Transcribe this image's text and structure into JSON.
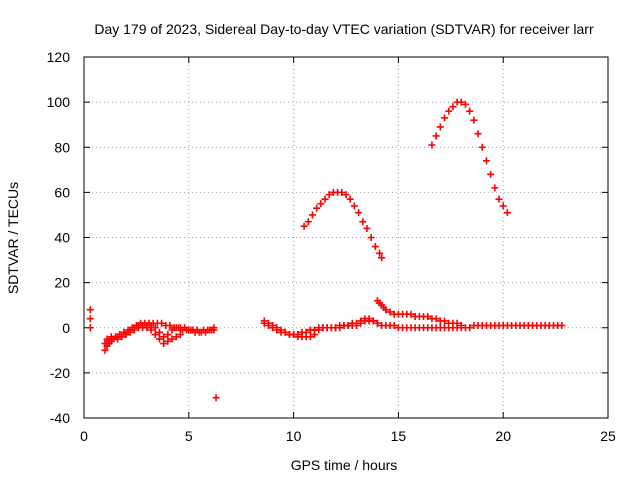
{
  "chart_data": {
    "type": "scatter",
    "title": "Day 179 of 2023, Sidereal Day-to-day VTEC variation (SDTVAR) for receiver larr",
    "xlabel": "GPS time / hours",
    "ylabel": "SDTVAR / TECUs",
    "xlim": [
      0,
      25
    ],
    "ylim": [
      -40,
      120
    ],
    "x_ticks": [
      0,
      5,
      10,
      15,
      20,
      25
    ],
    "y_ticks": [
      -40,
      -20,
      0,
      20,
      40,
      60,
      80,
      100,
      120
    ],
    "grid": true,
    "marker": "+",
    "colors": {
      "series": "#ff0000"
    },
    "series": [
      {
        "points": [
          [
            0.3,
            8
          ],
          [
            0.3,
            4
          ],
          [
            0.3,
            0
          ],
          [
            1.0,
            -10
          ],
          [
            1.1,
            -8
          ],
          [
            1.2,
            -7
          ],
          [
            1.3,
            -6
          ],
          [
            1.4,
            -5
          ],
          [
            1.6,
            -4
          ],
          [
            1.8,
            -4
          ],
          [
            2.0,
            -3
          ],
          [
            2.2,
            -1
          ],
          [
            2.4,
            0
          ],
          [
            2.6,
            1
          ],
          [
            2.8,
            1
          ],
          [
            3.0,
            1
          ],
          [
            3.2,
            1
          ],
          [
            3.4,
            0
          ],
          [
            3.6,
            -2
          ],
          [
            3.8,
            -4
          ],
          [
            4.0,
            -3
          ],
          [
            4.2,
            -1
          ],
          [
            4.4,
            0
          ],
          [
            4.6,
            0
          ],
          [
            4.8,
            0
          ],
          [
            5.0,
            -1
          ],
          [
            5.2,
            -1
          ],
          [
            5.4,
            -1
          ],
          [
            5.6,
            -2
          ],
          [
            5.8,
            -2
          ],
          [
            6.0,
            -1
          ],
          [
            6.2,
            -1
          ],
          [
            1.0,
            -7
          ],
          [
            1.2,
            -6
          ],
          [
            1.4,
            -5
          ],
          [
            1.6,
            -5
          ],
          [
            1.8,
            -4
          ],
          [
            2.0,
            -3
          ],
          [
            2.2,
            -2
          ],
          [
            2.4,
            -1
          ],
          [
            2.6,
            0
          ],
          [
            2.8,
            0
          ],
          [
            3.0,
            0
          ],
          [
            3.2,
            -1
          ],
          [
            3.4,
            -3
          ],
          [
            3.6,
            -5
          ],
          [
            3.8,
            -7
          ],
          [
            4.0,
            -6
          ],
          [
            4.2,
            -5
          ],
          [
            4.4,
            -4
          ],
          [
            4.6,
            -3
          ],
          [
            1.1,
            -5
          ],
          [
            1.3,
            -4
          ],
          [
            1.5,
            -4
          ],
          [
            1.7,
            -3
          ],
          [
            1.9,
            -2
          ],
          [
            2.1,
            -1
          ],
          [
            2.3,
            0
          ],
          [
            2.5,
            1
          ],
          [
            2.7,
            2
          ],
          [
            2.9,
            2
          ],
          [
            3.1,
            2
          ],
          [
            3.3,
            2
          ],
          [
            3.5,
            2
          ],
          [
            3.7,
            2
          ],
          [
            3.9,
            1
          ],
          [
            4.1,
            1
          ],
          [
            4.3,
            0
          ],
          [
            4.5,
            0
          ],
          [
            4.7,
            -1
          ],
          [
            4.9,
            -1
          ],
          [
            5.1,
            -1
          ],
          [
            5.3,
            -2
          ],
          [
            5.5,
            -2
          ],
          [
            5.7,
            -1
          ],
          [
            5.9,
            -1
          ],
          [
            6.1,
            -1
          ],
          [
            6.2,
            0
          ],
          [
            6.3,
            -31
          ],
          [
            8.6,
            3
          ],
          [
            8.8,
            2
          ],
          [
            9.0,
            1
          ],
          [
            9.2,
            0
          ],
          [
            9.4,
            -1
          ],
          [
            9.6,
            -2
          ],
          [
            9.8,
            -3
          ],
          [
            10.0,
            -3
          ],
          [
            10.2,
            -4
          ],
          [
            10.4,
            -4
          ],
          [
            10.6,
            -4
          ],
          [
            10.8,
            -4
          ],
          [
            11.0,
            -3
          ],
          [
            8.6,
            2
          ],
          [
            8.8,
            1
          ],
          [
            9.0,
            0
          ],
          [
            9.2,
            -1
          ],
          [
            9.4,
            -2
          ],
          [
            9.6,
            -2
          ],
          [
            9.8,
            -3
          ],
          [
            10.0,
            -3
          ],
          [
            10.2,
            -3
          ],
          [
            10.4,
            -2
          ],
          [
            10.6,
            -2
          ],
          [
            10.8,
            -1
          ],
          [
            11.0,
            -1
          ],
          [
            11.2,
            0
          ],
          [
            11.4,
            0
          ],
          [
            11.6,
            0
          ],
          [
            11.8,
            0
          ],
          [
            12.0,
            0
          ],
          [
            12.2,
            0
          ],
          [
            12.4,
            1
          ],
          [
            12.6,
            1
          ],
          [
            12.8,
            1
          ],
          [
            13.0,
            1
          ],
          [
            13.2,
            2
          ],
          [
            13.4,
            3
          ],
          [
            13.6,
            3
          ],
          [
            13.8,
            3
          ],
          [
            14.0,
            2
          ],
          [
            14.2,
            1
          ],
          [
            14.4,
            1
          ],
          [
            14.6,
            1
          ],
          [
            14.8,
            1
          ],
          [
            15.0,
            0
          ],
          [
            15.2,
            0
          ],
          [
            15.4,
            0
          ],
          [
            15.6,
            0
          ],
          [
            15.8,
            0
          ],
          [
            16.0,
            0
          ],
          [
            16.2,
            0
          ],
          [
            16.4,
            0
          ],
          [
            16.6,
            0
          ],
          [
            16.8,
            0
          ],
          [
            17.0,
            0
          ],
          [
            17.2,
            0
          ],
          [
            17.4,
            0
          ],
          [
            17.6,
            0
          ],
          [
            17.8,
            0
          ],
          [
            18.0,
            0
          ],
          [
            18.2,
            0
          ],
          [
            18.4,
            0
          ],
          [
            18.6,
            1
          ],
          [
            18.8,
            1
          ],
          [
            19.0,
            1
          ],
          [
            19.2,
            1
          ],
          [
            19.4,
            1
          ],
          [
            19.6,
            1
          ],
          [
            19.8,
            1
          ],
          [
            20.0,
            1
          ],
          [
            20.2,
            1
          ],
          [
            20.4,
            1
          ],
          [
            20.6,
            1
          ],
          [
            20.8,
            1
          ],
          [
            21.0,
            1
          ],
          [
            21.2,
            1
          ],
          [
            21.4,
            1
          ],
          [
            21.6,
            1
          ],
          [
            21.8,
            1
          ],
          [
            22.0,
            1
          ],
          [
            22.2,
            1
          ],
          [
            22.4,
            1
          ],
          [
            22.6,
            1
          ],
          [
            22.8,
            1
          ],
          [
            10.6,
            -2
          ],
          [
            10.8,
            -1
          ],
          [
            11.0,
            -1
          ],
          [
            11.2,
            -1
          ],
          [
            11.4,
            0
          ],
          [
            11.6,
            0
          ],
          [
            11.8,
            0
          ],
          [
            12.0,
            0
          ],
          [
            12.2,
            1
          ],
          [
            12.4,
            1
          ],
          [
            12.6,
            1
          ],
          [
            12.8,
            2
          ],
          [
            13.0,
            2
          ],
          [
            13.2,
            3
          ],
          [
            13.4,
            4
          ],
          [
            13.6,
            4
          ],
          [
            13.8,
            3
          ],
          [
            14.0,
            2
          ],
          [
            14.0,
            12
          ],
          [
            14.1,
            11
          ],
          [
            14.2,
            10
          ],
          [
            14.3,
            9
          ],
          [
            14.4,
            8
          ],
          [
            14.6,
            7
          ],
          [
            14.8,
            6
          ],
          [
            15.0,
            6
          ],
          [
            15.2,
            6
          ],
          [
            15.4,
            6
          ],
          [
            15.6,
            6
          ],
          [
            15.8,
            5
          ],
          [
            16.0,
            5
          ],
          [
            16.2,
            5
          ],
          [
            16.4,
            5
          ],
          [
            16.6,
            4
          ],
          [
            16.8,
            4
          ],
          [
            17.0,
            3
          ],
          [
            17.2,
            3
          ],
          [
            17.4,
            2
          ],
          [
            17.6,
            2
          ],
          [
            17.8,
            2
          ],
          [
            18.0,
            1
          ],
          [
            10.5,
            45
          ],
          [
            10.7,
            47
          ],
          [
            10.9,
            50
          ],
          [
            11.1,
            53
          ],
          [
            11.3,
            55
          ],
          [
            11.5,
            57
          ],
          [
            11.7,
            59
          ],
          [
            11.9,
            60
          ],
          [
            12.1,
            60
          ],
          [
            12.3,
            60
          ],
          [
            12.5,
            59
          ],
          [
            12.7,
            57
          ],
          [
            12.9,
            54
          ],
          [
            13.1,
            51
          ],
          [
            13.3,
            47
          ],
          [
            13.5,
            44
          ],
          [
            13.7,
            40
          ],
          [
            13.9,
            36
          ],
          [
            14.1,
            33
          ],
          [
            14.2,
            31
          ],
          [
            16.6,
            81
          ],
          [
            16.8,
            85
          ],
          [
            17.0,
            89
          ],
          [
            17.2,
            93
          ],
          [
            17.4,
            96
          ],
          [
            17.6,
            98
          ],
          [
            17.8,
            100
          ],
          [
            18.0,
            100
          ],
          [
            18.2,
            99
          ],
          [
            18.4,
            96
          ],
          [
            18.6,
            92
          ],
          [
            18.8,
            86
          ],
          [
            19.0,
            80
          ],
          [
            19.2,
            74
          ],
          [
            19.4,
            68
          ],
          [
            19.6,
            62
          ],
          [
            19.8,
            57
          ],
          [
            20.0,
            54
          ],
          [
            20.2,
            51
          ]
        ]
      }
    ]
  }
}
